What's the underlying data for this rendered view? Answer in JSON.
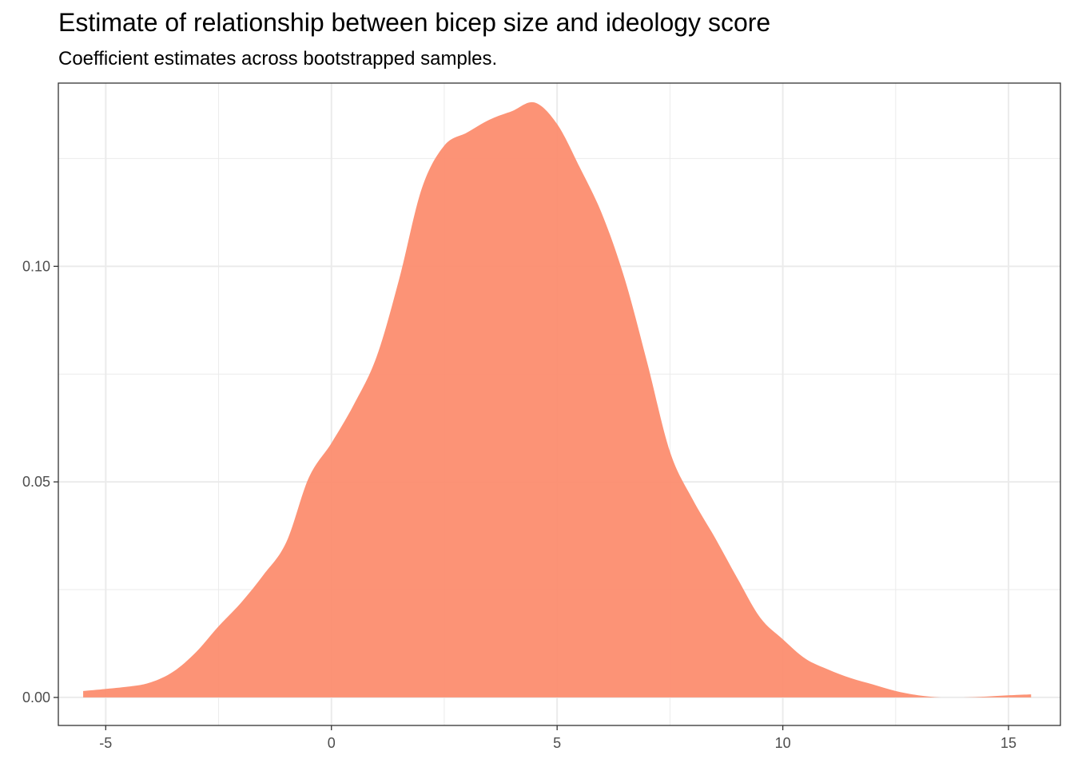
{
  "chart_data": {
    "type": "area",
    "title": "Estimate of relationship between bicep size and ideology score",
    "subtitle": "Coefficient estimates across bootstrapped samples.",
    "xlabel": "",
    "ylabel": "",
    "xlim": [
      -6.05,
      16.15
    ],
    "ylim": [
      -0.0065,
      0.1425
    ],
    "x_ticks": [
      -5,
      0,
      5,
      10,
      15
    ],
    "x_tick_labels": [
      "-5",
      "0",
      "5",
      "10",
      "15"
    ],
    "y_ticks": [
      0.0,
      0.05,
      0.1
    ],
    "y_tick_labels": [
      "0.00",
      "0.05",
      "0.10"
    ],
    "grid": true,
    "fill_color": "#FC8D6F",
    "series": [
      {
        "x": [
          -5.5,
          -4.5,
          -4.0,
          -3.5,
          -3.0,
          -2.5,
          -2.0,
          -1.5,
          -1.0,
          -0.5,
          0.0,
          0.5,
          1.0,
          1.5,
          2.0,
          2.5,
          3.0,
          3.5,
          4.0,
          4.5,
          5.0,
          5.5,
          6.0,
          6.5,
          7.0,
          7.5,
          8.0,
          8.5,
          9.0,
          9.5,
          10.0,
          10.5,
          11.0,
          11.5,
          12.0,
          12.5,
          13.0,
          13.5,
          14.0,
          14.5,
          15.0,
          15.5
        ],
        "values": [
          0.0015,
          0.0025,
          0.0035,
          0.006,
          0.0105,
          0.0165,
          0.022,
          0.0285,
          0.036,
          0.051,
          0.059,
          0.068,
          0.079,
          0.097,
          0.118,
          0.128,
          0.131,
          0.134,
          0.136,
          0.138,
          0.133,
          0.123,
          0.112,
          0.097,
          0.0775,
          0.057,
          0.046,
          0.037,
          0.0275,
          0.0185,
          0.0135,
          0.009,
          0.0065,
          0.0045,
          0.003,
          0.0015,
          0.0005,
          0.0,
          0.0,
          0.0002,
          0.0005,
          0.0007
        ]
      }
    ]
  }
}
